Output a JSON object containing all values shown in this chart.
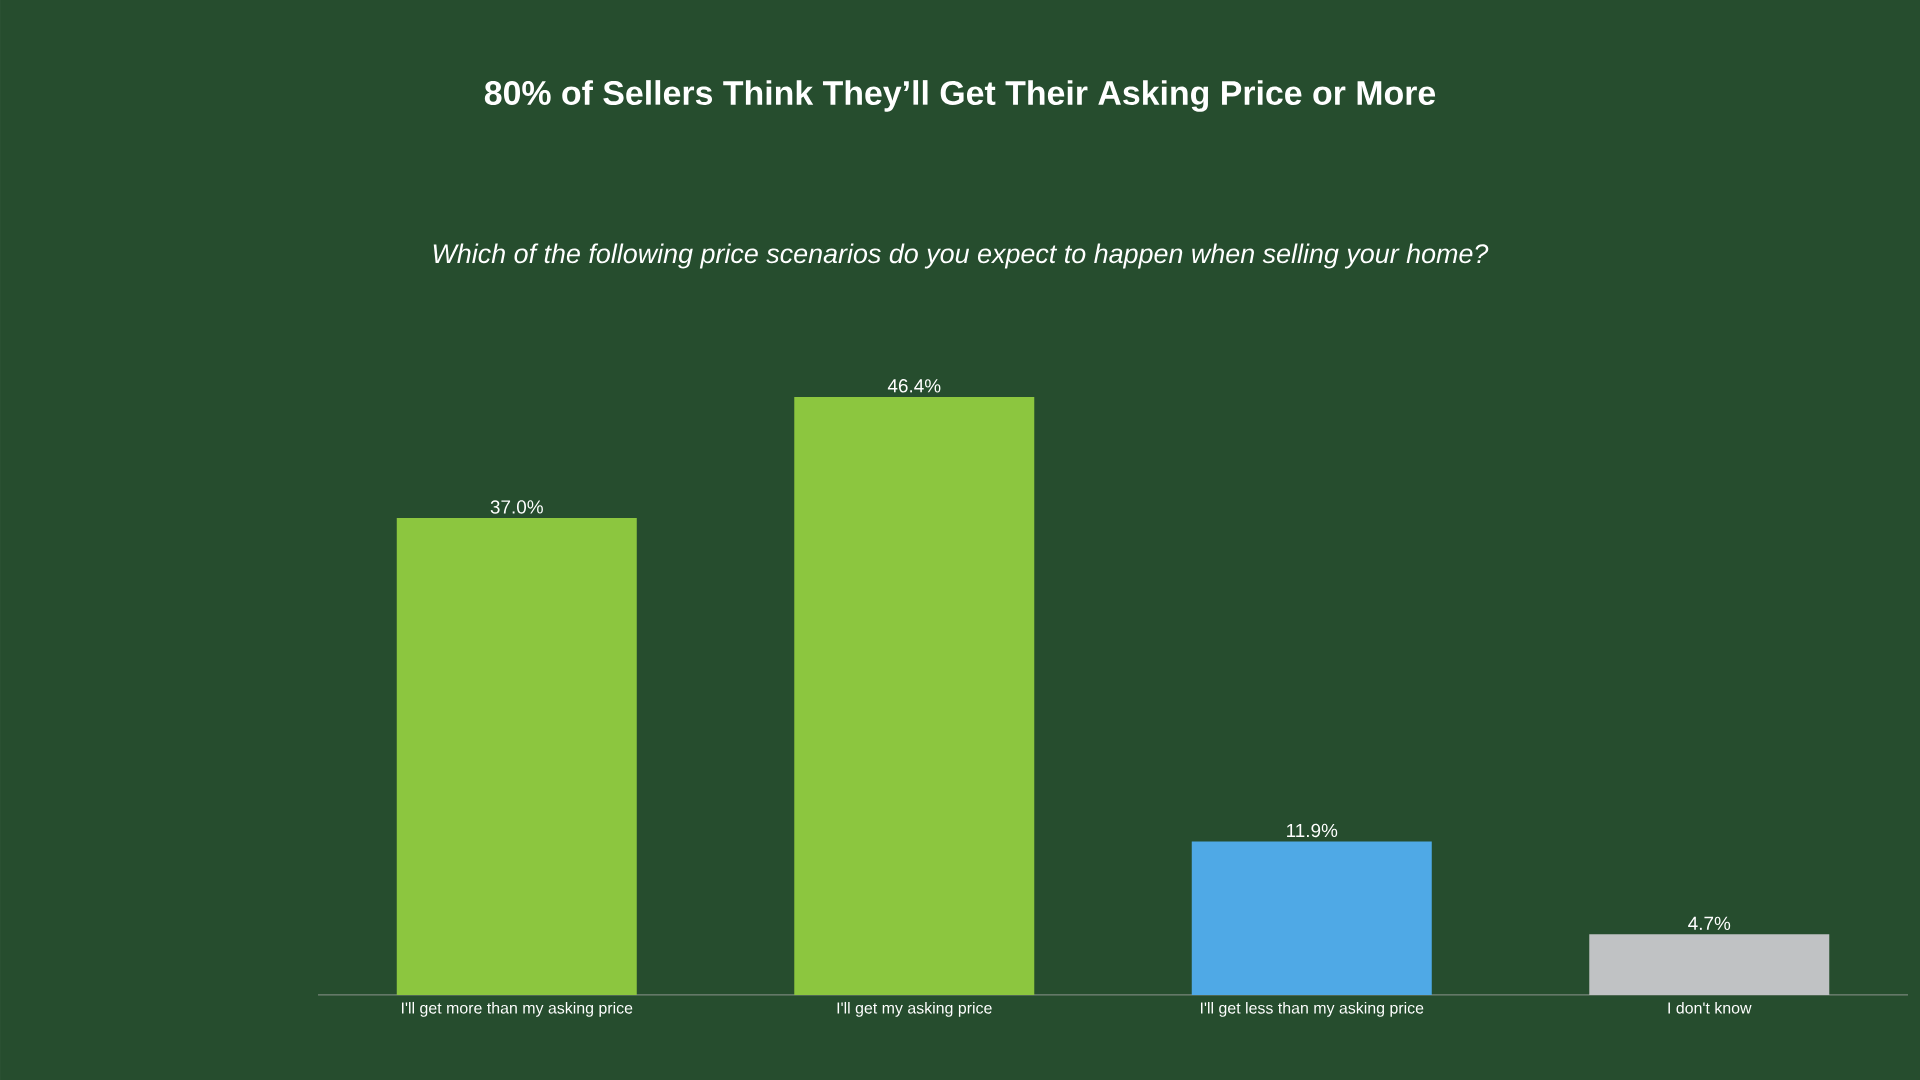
{
  "chart_data": {
    "type": "bar",
    "title": "80% of Sellers Think They’ll Get Their Asking Price or More",
    "subtitle": "Which of the following price scenarios do you expect to happen when selling your home?",
    "categories": [
      "I'll get more than my asking price",
      "I'll get my asking price",
      "I'll get less than my asking price",
      "I don't know"
    ],
    "values": [
      37.0,
      46.4,
      11.9,
      4.7
    ],
    "value_labels": [
      "37.0%",
      "46.4%",
      "11.9%",
      "4.7%"
    ],
    "colors": [
      "#8cc63f",
      "#8cc63f",
      "#4fa9e6",
      "#c0c2c4"
    ],
    "relative": false
  }
}
